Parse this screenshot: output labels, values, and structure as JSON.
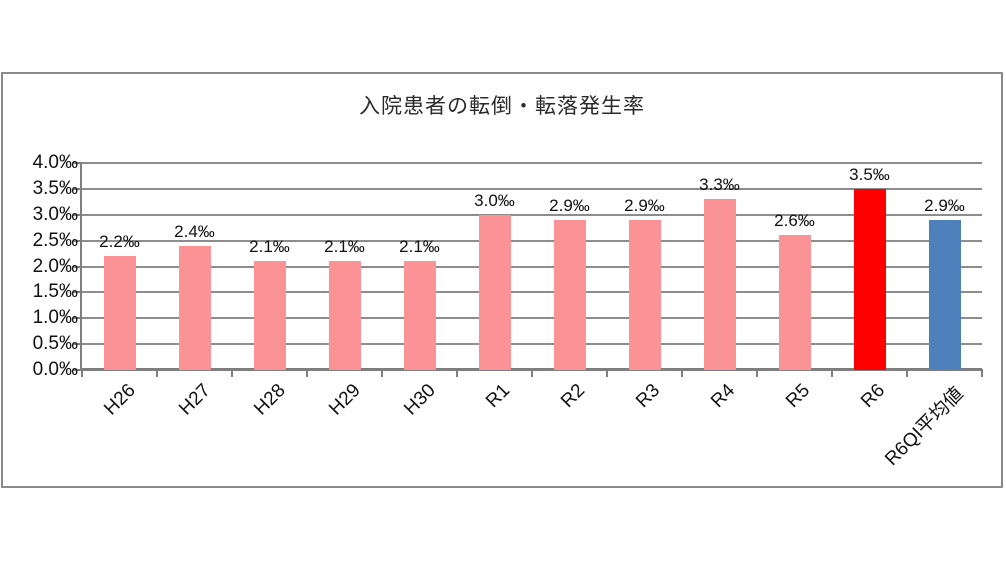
{
  "chart_data": {
    "type": "bar",
    "title": "入院患者の転倒・転落発生率",
    "unit": "‰",
    "categories": [
      "H26",
      "H27",
      "H28",
      "H29",
      "H30",
      "R1",
      "R2",
      "R3",
      "R4",
      "R5",
      "R6",
      "R6QI平均値"
    ],
    "values": [
      2.2,
      2.4,
      2.1,
      2.1,
      2.1,
      3.0,
      2.9,
      2.9,
      3.3,
      2.6,
      3.5,
      2.9
    ],
    "data_labels": [
      "2.2‰",
      "2.4‰",
      "2.1‰",
      "2.1‰",
      "2.1‰",
      "3.0‰",
      "2.9‰",
      "2.9‰",
      "3.3‰",
      "2.6‰",
      "3.5‰",
      "2.9‰"
    ],
    "bar_colors": [
      "#fb9396",
      "#fb9396",
      "#fb9396",
      "#fb9396",
      "#fb9396",
      "#fb9396",
      "#fb9396",
      "#fb9396",
      "#fb9396",
      "#fb9396",
      "#ff0000",
      "#4e81bc"
    ],
    "y_axis": {
      "min": 0,
      "max": 4.0,
      "step": 0.5,
      "tick_labels": [
        "0.0‰",
        "0.5‰",
        "1.0‰",
        "1.5‰",
        "2.0‰",
        "2.5‰",
        "3.0‰",
        "3.5‰",
        "4.0‰"
      ]
    },
    "grid": "horizontal",
    "legend": "none",
    "colors": {
      "bar_default": "#fb9396",
      "bar_highlight": "#ff0000",
      "bar_average": "#4e81bc",
      "gridline": "#8d8d8d",
      "axis": "#7f7f7f",
      "border": "#8a8a8a",
      "text": "#111111"
    }
  }
}
